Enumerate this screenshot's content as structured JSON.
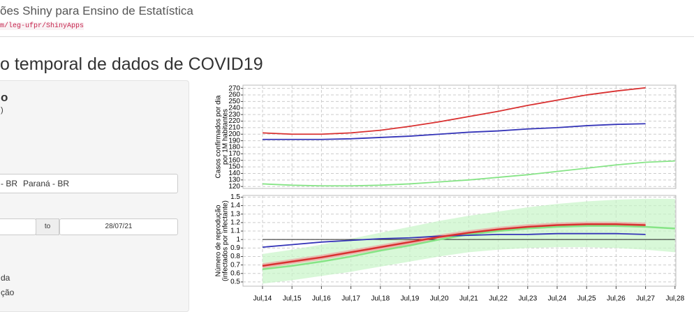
{
  "navbar": {
    "title": "ões Shiny para Ensino de Estatística",
    "link": "m/leg-ufpr/ShinyApps"
  },
  "page_title": "o temporal de dados de COVID19",
  "sidebar": {
    "heading": "o",
    "sub": ")",
    "tags": [
      "- BR",
      "Paraná - BR"
    ],
    "date_sep": "to",
    "date_end": "28/07/21",
    "options": [
      "da",
      "ção"
    ]
  },
  "chart_data": [
    {
      "type": "line",
      "ylabel": [
        "Casos confirmados por dia",
        "por 1M habitantes"
      ],
      "ylim": [
        117,
        275
      ],
      "yticks": [
        120,
        130,
        140,
        150,
        160,
        170,
        180,
        190,
        200,
        210,
        220,
        230,
        240,
        250,
        260,
        270
      ],
      "grid": true,
      "series": [
        {
          "color": "#d93030",
          "values": [
            202,
            200,
            200,
            202,
            206,
            212,
            219,
            227,
            235,
            244,
            252,
            260,
            266,
            271,
            null
          ]
        },
        {
          "color": "#3535b8",
          "values": [
            192,
            192,
            192,
            193,
            195,
            197,
            200,
            203,
            205,
            208,
            210,
            213,
            215,
            216,
            null
          ]
        },
        {
          "color": "#86e486",
          "values": [
            124,
            122,
            121,
            121,
            122,
            124,
            127,
            130,
            134,
            138,
            143,
            148,
            153,
            157,
            159
          ]
        }
      ]
    },
    {
      "type": "line",
      "ylabel": [
        "Número de reprodução",
        "(infectados por infectante)"
      ],
      "categories": [
        "Jul,14",
        "Jul,15",
        "Jul,16",
        "Jul,17",
        "Jul,18",
        "Jul,19",
        "Jul,20",
        "Jul,21",
        "Jul,22",
        "Jul,23",
        "Jul,24",
        "Jul,25",
        "Jul,26",
        "Jul,27",
        "Jul,28"
      ],
      "ylim": [
        0.45,
        1.52
      ],
      "yticks": [
        0.5,
        0.6,
        0.7,
        0.8,
        0.9,
        1,
        1.1,
        1.2,
        1.3,
        1.4,
        1.5
      ],
      "grid": true,
      "hline": 1,
      "series": [
        {
          "color": "#86e486",
          "band_color": "#c8f5c8",
          "values": [
            0.65,
            0.69,
            0.74,
            0.8,
            0.87,
            0.93,
            1.0,
            1.06,
            1.1,
            1.13,
            1.15,
            1.16,
            1.16,
            1.15,
            1.13
          ],
          "lower": [
            0.48,
            0.52,
            0.57,
            0.62,
            0.68,
            0.74,
            0.8,
            0.85,
            0.88,
            0.9,
            0.91,
            0.91,
            0.9,
            0.88,
            0.85
          ],
          "upper": [
            0.83,
            0.88,
            0.94,
            1.01,
            1.08,
            1.15,
            1.22,
            1.28,
            1.33,
            1.38,
            1.42,
            1.45,
            1.47,
            1.48,
            1.48
          ]
        },
        {
          "color": "#3535b8",
          "values": [
            0.91,
            0.94,
            0.97,
            0.99,
            1.01,
            1.02,
            1.04,
            1.05,
            1.06,
            1.06,
            1.07,
            1.07,
            1.07,
            1.06,
            null
          ]
        },
        {
          "color": "#d93030",
          "band_color": "#f0a0a0",
          "values": [
            0.69,
            0.74,
            0.79,
            0.85,
            0.91,
            0.97,
            1.03,
            1.08,
            1.12,
            1.15,
            1.17,
            1.18,
            1.18,
            1.17,
            null
          ],
          "lower": [
            0.66,
            0.71,
            0.76,
            0.82,
            0.88,
            0.94,
            1.0,
            1.05,
            1.09,
            1.12,
            1.14,
            1.15,
            1.15,
            1.14,
            null
          ],
          "upper": [
            0.72,
            0.77,
            0.82,
            0.88,
            0.94,
            1.0,
            1.06,
            1.11,
            1.15,
            1.18,
            1.2,
            1.21,
            1.21,
            1.2,
            null
          ]
        }
      ]
    }
  ]
}
